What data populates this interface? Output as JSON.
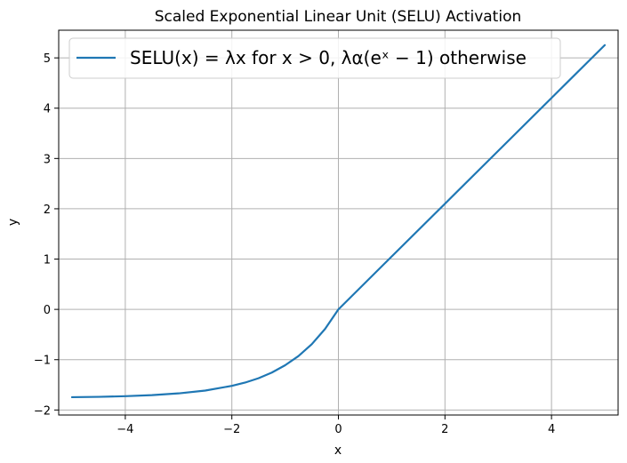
{
  "chart_data": {
    "type": "line",
    "title": "Scaled Exponential Linear Unit (SELU) Activation",
    "xlabel": "x",
    "ylabel": "y",
    "xlim": [
      -5.25,
      5.25
    ],
    "ylim": [
      -2.1,
      5.55
    ],
    "xticks": [
      -4,
      -2,
      0,
      2,
      4
    ],
    "yticks": [
      -2,
      -1,
      0,
      1,
      2,
      3,
      4,
      5
    ],
    "xtick_labels": [
      "−4",
      "−2",
      "0",
      "2",
      "4"
    ],
    "ytick_labels": [
      "−2",
      "−1",
      "0",
      "1",
      "2",
      "3",
      "4",
      "5"
    ],
    "grid": true,
    "legend": {
      "position": "top",
      "entries": [
        "SELU(x) = λx for x > 0, λα(eˣ − 1) otherwise"
      ]
    },
    "series": [
      {
        "name": "SELU(x) = λx for x > 0, λα(eˣ − 1) otherwise",
        "color": "#1f77b4",
        "x": [
          -5,
          -4.5,
          -4,
          -3.5,
          -3,
          -2.5,
          -2,
          -1.75,
          -1.5,
          -1.25,
          -1,
          -0.75,
          -0.5,
          -0.25,
          0,
          1,
          2,
          3,
          4,
          5
        ],
        "y": [
          -1.746,
          -1.739,
          -1.726,
          -1.705,
          -1.67,
          -1.614,
          -1.52,
          -1.455,
          -1.369,
          -1.256,
          -1.111,
          -0.928,
          -0.692,
          -0.389,
          0,
          1.051,
          2.101,
          3.152,
          4.203,
          5.254
        ]
      }
    ]
  }
}
